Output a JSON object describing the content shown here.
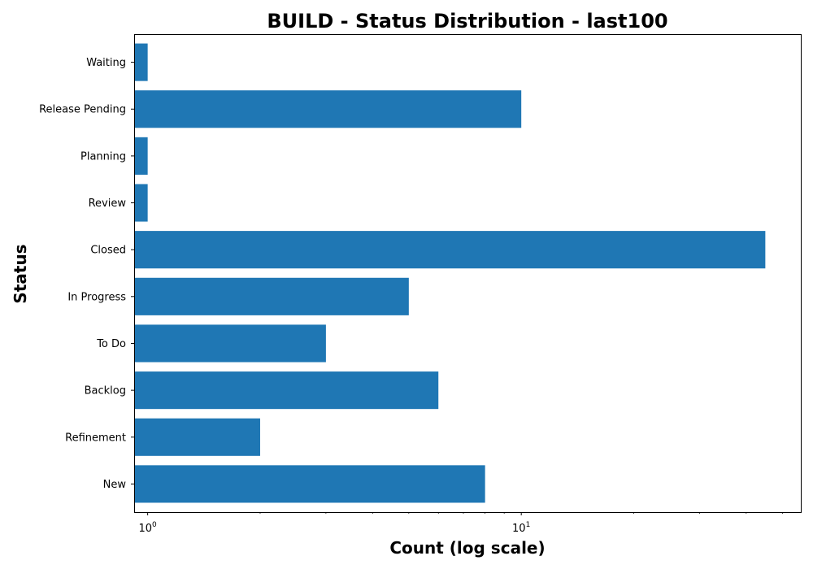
{
  "chart_data": {
    "type": "bar",
    "orientation": "horizontal",
    "title": "BUILD - Status Distribution - last100",
    "xlabel": "Count (log scale)",
    "ylabel": "Status",
    "x_scale": "log",
    "xlim": [
      0.92,
      56
    ],
    "x_tick_values": [
      1,
      10
    ],
    "x_tick_labels": [
      {
        "base": "10",
        "exp": "0"
      },
      {
        "base": "10",
        "exp": "1"
      }
    ],
    "categories": [
      "New",
      "Refinement",
      "Backlog",
      "To Do",
      "In Progress",
      "Closed",
      "Review",
      "Planning",
      "Release Pending",
      "Waiting"
    ],
    "values": [
      8,
      2,
      6,
      3,
      5,
      45,
      1,
      1,
      10,
      1
    ],
    "bar_color": "#1f77b4",
    "grid": false,
    "legend": "none"
  }
}
